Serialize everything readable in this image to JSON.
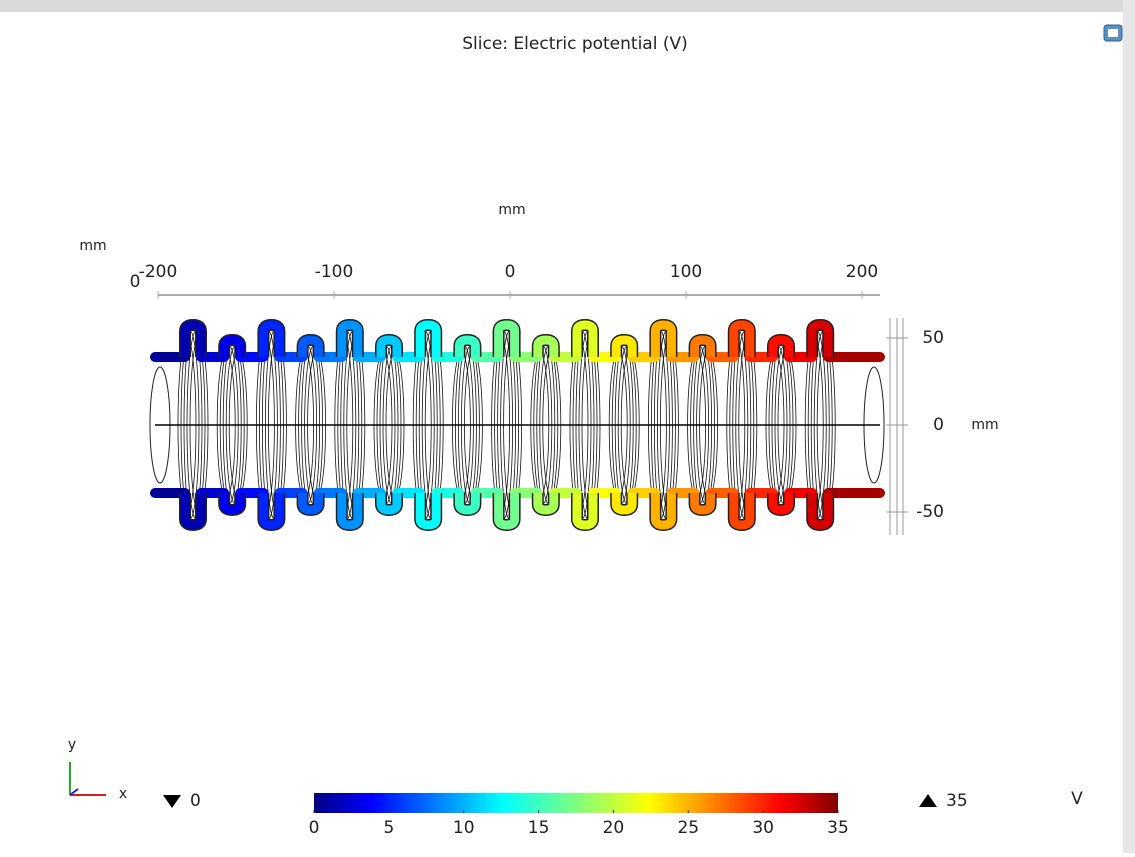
{
  "plot": {
    "title": "Slice: Electric potential (V)",
    "x_axis": {
      "unit": "mm",
      "ticks": [
        -200,
        -100,
        0,
        100,
        200
      ]
    },
    "y_axis": {
      "unit": "mm",
      "ticks": [
        50,
        0,
        -50
      ]
    },
    "z_axis": {
      "unit": "mm",
      "ticks": [
        0
      ]
    },
    "triad": {
      "y": "y",
      "x": "x"
    },
    "colorbar": {
      "range": [
        0,
        35
      ],
      "ticks": [
        0,
        5,
        10,
        15,
        20,
        25,
        30,
        35
      ],
      "unit": "V",
      "min_value": 0,
      "max_value": 35
    }
  }
}
